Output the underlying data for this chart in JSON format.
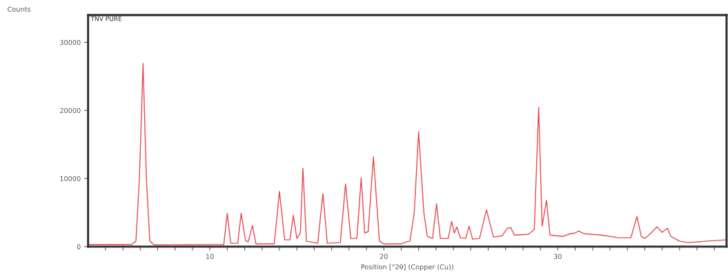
{
  "chart_data": {
    "type": "line",
    "xlabel": "Position [°2θ] (Copper (Cu))",
    "ylabel": "Counts",
    "annotations": [
      "TNV PURE"
    ],
    "xlim": [
      3,
      39.7
    ],
    "ylim": [
      0,
      34000
    ],
    "xticks": [
      {
        "value": 4,
        "label": null
      },
      {
        "value": 5,
        "label": null
      },
      {
        "value": 6,
        "label": null
      },
      {
        "value": 7,
        "label": null
      },
      {
        "value": 8,
        "label": null
      },
      {
        "value": 9,
        "label": null
      },
      10,
      {
        "value": 11,
        "label": null
      },
      {
        "value": 12,
        "label": null
      },
      {
        "value": 13,
        "label": null
      },
      {
        "value": 14,
        "label": null
      },
      {
        "value": 15,
        "label": null
      },
      {
        "value": 16,
        "label": null
      },
      {
        "value": 17,
        "label": null
      },
      {
        "value": 18,
        "label": null
      },
      {
        "value": 19,
        "label": null
      },
      20,
      {
        "value": 21,
        "label": null
      },
      {
        "value": 22,
        "label": null
      },
      {
        "value": 23,
        "label": null
      },
      {
        "value": 24,
        "label": null
      },
      {
        "value": 25,
        "label": null
      },
      {
        "value": 26,
        "label": null
      },
      {
        "value": 27,
        "label": null
      },
      {
        "value": 28,
        "label": null
      },
      {
        "value": 29,
        "label": null
      },
      30,
      {
        "value": 31,
        "label": null
      },
      {
        "value": 32,
        "label": null
      },
      {
        "value": 33,
        "label": null
      },
      {
        "value": 34,
        "label": null
      },
      {
        "value": 35,
        "label": null
      },
      {
        "value": 36,
        "label": null
      },
      {
        "value": 37,
        "label": null
      },
      {
        "value": 38,
        "label": null
      },
      {
        "value": 39,
        "label": null
      }
    ],
    "yticks": [
      0,
      10000,
      20000,
      30000
    ],
    "grid": false,
    "legend": false,
    "marker": "none",
    "line_style": "solid",
    "series": [
      {
        "color": "#e8474f",
        "x": [
          3.0,
          5.5,
          5.75,
          5.95,
          6.16,
          6.35,
          6.55,
          6.8,
          10.8,
          11.0,
          11.2,
          11.6,
          11.8,
          12.05,
          12.2,
          12.45,
          12.65,
          13.7,
          14.0,
          14.3,
          14.6,
          14.8,
          15.0,
          15.2,
          15.35,
          15.55,
          16.2,
          16.5,
          16.75,
          17.5,
          17.8,
          18.1,
          18.45,
          18.7,
          18.9,
          19.1,
          19.4,
          19.75,
          20.0,
          21.0,
          21.3,
          21.5,
          21.75,
          22.0,
          22.3,
          22.5,
          22.8,
          23.03,
          23.25,
          23.7,
          23.9,
          24.05,
          24.2,
          24.4,
          24.7,
          24.9,
          25.1,
          25.5,
          25.9,
          26.3,
          26.8,
          27.1,
          27.3,
          27.5,
          28.3,
          28.65,
          28.9,
          29.1,
          29.35,
          29.55,
          30.3,
          30.7,
          31.0,
          31.2,
          31.5,
          32.5,
          33.5,
          34.2,
          34.55,
          34.8,
          35.0,
          35.4,
          35.7,
          36.0,
          36.3,
          36.5,
          37.0,
          37.5,
          38.5,
          39.7
        ],
        "values": [
          300,
          300,
          800,
          10000,
          26900,
          10000,
          800,
          250,
          300,
          4900,
          500,
          500,
          4900,
          900,
          700,
          3100,
          400,
          400,
          8100,
          1000,
          1000,
          4600,
          1200,
          2000,
          11500,
          800,
          500,
          7800,
          500,
          600,
          9200,
          1200,
          1200,
          10100,
          2000,
          2200,
          13200,
          800,
          400,
          400,
          700,
          800,
          5000,
          16900,
          5000,
          1500,
          1200,
          6300,
          1200,
          1200,
          3700,
          2000,
          2900,
          1300,
          1200,
          3000,
          1100,
          1200,
          5400,
          1400,
          1600,
          2700,
          2800,
          1700,
          1800,
          2500,
          20500,
          3000,
          6800,
          1700,
          1500,
          1900,
          2000,
          2300,
          1900,
          1700,
          1300,
          1300,
          4400,
          1500,
          1200,
          2100,
          2900,
          2100,
          2700,
          1500,
          800,
          600,
          800,
          1000
        ]
      }
    ]
  }
}
